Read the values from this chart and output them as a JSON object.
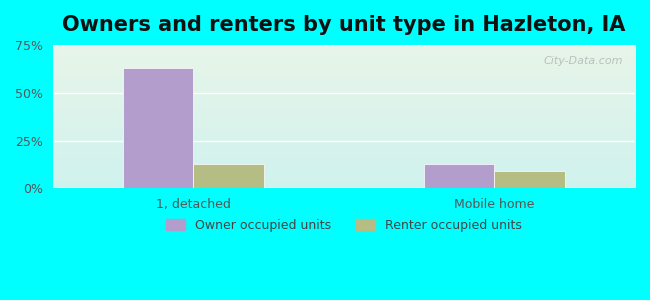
{
  "title": "Owners and renters by unit type in Hazleton, IA",
  "categories": [
    "1, detached",
    "Mobile home"
  ],
  "owner_values": [
    63,
    13
  ],
  "renter_values": [
    13,
    9
  ],
  "owner_color": "#b39dcc",
  "renter_color": "#b5bc84",
  "owner_label": "Owner occupied units",
  "renter_label": "Renter occupied units",
  "ylim": [
    0,
    75
  ],
  "yticks": [
    0,
    25,
    50,
    75
  ],
  "yticklabels": [
    "0%",
    "25%",
    "50%",
    "75%"
  ],
  "background_top": "#e8f5e9",
  "background_bottom": "#e0f7f7",
  "outer_background": "#00ffff",
  "title_fontsize": 15,
  "bar_width": 0.35,
  "group_positions": [
    1.0,
    2.5
  ]
}
